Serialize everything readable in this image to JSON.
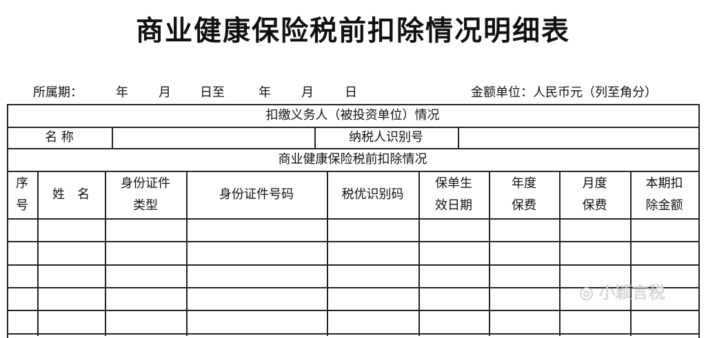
{
  "title": "商业健康保险税前扣除情况明细表",
  "period": {
    "label": "所属期：",
    "from_year": "年",
    "from_month": "月",
    "from_day_to": "日至",
    "to_year": "年",
    "to_month": "月",
    "to_day": "日"
  },
  "unit": "金额单位：人民币元（列至角分）",
  "section1": {
    "title": "扣缴义务人（被投资单位）情况",
    "name_label": "名 称",
    "name_value": "",
    "taxid_label": "纳税人识别号",
    "taxid_value": ""
  },
  "section2": {
    "title": "商业健康保险税前扣除情况",
    "columns": [
      "序\n号",
      "姓　名",
      "身份证件\n类型",
      "身份证件号码",
      "税优识别码",
      "保单生\n效日期",
      "年度\n保费",
      "月度\n保费",
      "本期扣\n除金额"
    ],
    "rows": [
      [
        "",
        "",
        "",
        "",
        "",
        "",
        "",
        "",
        ""
      ],
      [
        "",
        "",
        "",
        "",
        "",
        "",
        "",
        "",
        ""
      ],
      [
        "",
        "",
        "",
        "",
        "",
        "",
        "",
        "",
        ""
      ],
      [
        "",
        "",
        "",
        "",
        "",
        "",
        "",
        "",
        ""
      ],
      [
        "",
        "",
        "",
        "",
        "",
        "",
        "",
        "",
        ""
      ]
    ]
  },
  "watermark": "小颖言税"
}
